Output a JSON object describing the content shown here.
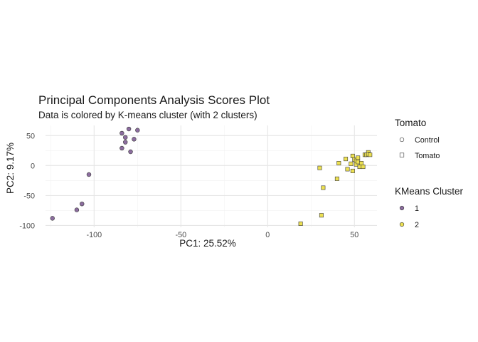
{
  "chart_data": {
    "type": "scatter",
    "title": "Principal Components Analysis Scores Plot",
    "subtitle": "Data is colored by K-means cluster (with 2 clusters)",
    "xlabel": "PC1: 25.52%",
    "ylabel": "PC2: 9.17%",
    "xlim": [
      -128,
      63
    ],
    "ylim": [
      -103,
      67
    ],
    "x_ticks": [
      -100,
      -50,
      0,
      50
    ],
    "x_tick_labels": [
      "-100",
      "-50",
      "0",
      "50"
    ],
    "y_ticks": [
      -100,
      -50,
      0,
      50
    ],
    "y_tick_labels": [
      "-100",
      "-50",
      "0",
      "50"
    ],
    "grid": true,
    "legend_placement": "right",
    "colors": {
      "cluster_1": "#8c6d9f",
      "cluster_2": "#ece052",
      "point_stroke": "#3a3a3a",
      "grid_major": "#e6e6e6",
      "grid_minor": "#f2f2f2"
    },
    "legends": [
      {
        "title": "Tomato",
        "entries": [
          {
            "label": "Control",
            "shape": "circle"
          },
          {
            "label": "Tomato",
            "shape": "square"
          }
        ]
      },
      {
        "title": "KMeans Cluster",
        "entries": [
          {
            "label": "1",
            "cluster": 1
          },
          {
            "label": "2",
            "cluster": 2
          }
        ]
      }
    ],
    "series": [
      {
        "name": "1",
        "shape": "circle",
        "points": [
          [
            -124,
            -88
          ],
          [
            -110,
            -74
          ],
          [
            -107,
            -64
          ],
          [
            -103,
            -15
          ],
          [
            -84,
            29
          ],
          [
            -84,
            54
          ],
          [
            -82,
            47
          ],
          [
            -82,
            39
          ],
          [
            -80,
            61
          ],
          [
            -79,
            23
          ],
          [
            -77,
            44
          ],
          [
            -75,
            59
          ]
        ]
      },
      {
        "name": "2",
        "shape": "square",
        "points": [
          [
            19,
            -97
          ],
          [
            31,
            -83
          ],
          [
            30,
            -4
          ],
          [
            32,
            -37
          ],
          [
            40,
            -22
          ],
          [
            41,
            4
          ],
          [
            45,
            11
          ],
          [
            46,
            -6
          ],
          [
            48,
            3
          ],
          [
            49,
            -9
          ],
          [
            49,
            16
          ],
          [
            50,
            10
          ],
          [
            51,
            8
          ],
          [
            51,
            2
          ],
          [
            52,
            6
          ],
          [
            52,
            13
          ],
          [
            53,
            -2
          ],
          [
            54,
            4
          ],
          [
            55,
            -2
          ],
          [
            56,
            18
          ],
          [
            57,
            18
          ],
          [
            58,
            22
          ],
          [
            58,
            19
          ],
          [
            59,
            18
          ]
        ]
      }
    ]
  }
}
